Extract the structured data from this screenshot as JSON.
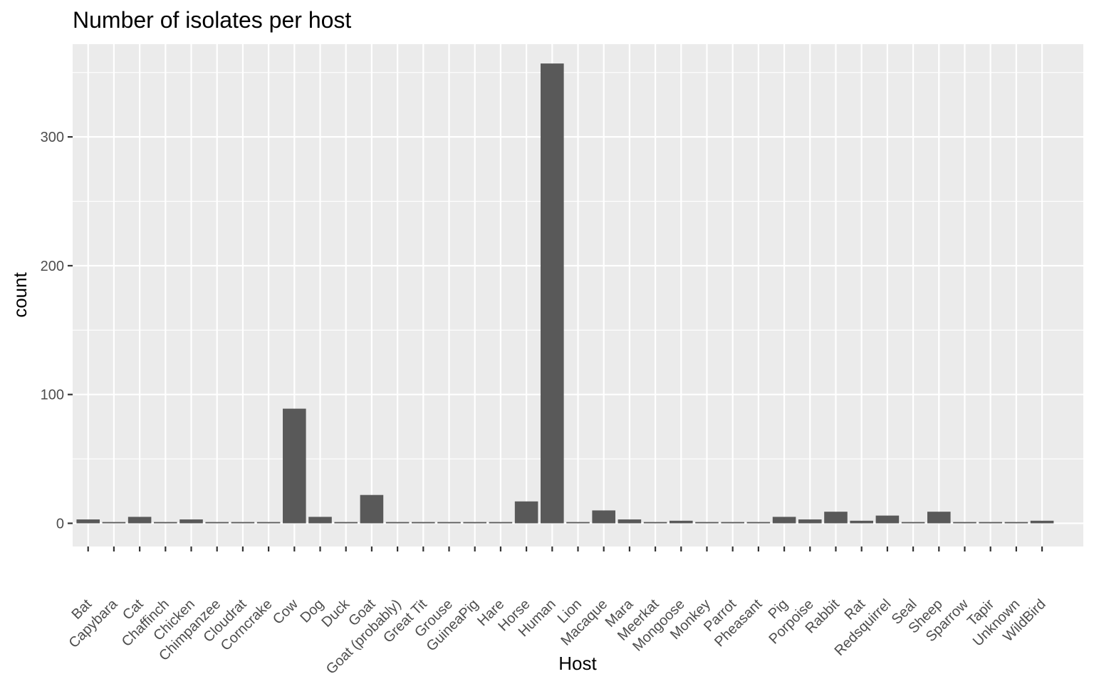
{
  "chart_data": {
    "type": "bar",
    "title": "Number of isolates per host",
    "xlabel": "Host",
    "ylabel": "count",
    "ylim": [
      -18,
      372
    ],
    "yticks": [
      0,
      100,
      200,
      300
    ],
    "grid": true,
    "legend": "none",
    "bar_color": "#595959",
    "panel_color": "#ebebeb",
    "categories": [
      "Bat",
      "Capybara",
      "Cat",
      "Chaffinch",
      "Chicken",
      "Chimpanzee",
      "Cloudrat",
      "Corncrake",
      "Cow",
      "Dog",
      "Duck",
      "Goat",
      "Goat (probably)",
      "Great Tit",
      "Grouse",
      "GuineaPig",
      "Hare",
      "Horse",
      "Human",
      "Lion",
      "Macaque",
      "Mara",
      "Meerkat",
      "Mongoose",
      "Monkey",
      "Parrot",
      "Pheasant",
      "Pig",
      "Porpoise",
      "Rabbit",
      "Rat",
      "Redsquirrel",
      "Seal",
      "Sheep",
      "Sparrow",
      "Tapir",
      "Unknown",
      "WildBird"
    ],
    "values": [
      3,
      1,
      5,
      1,
      3,
      1,
      1,
      1,
      89,
      5,
      1,
      22,
      1,
      1,
      1,
      1,
      1,
      17,
      357,
      1,
      10,
      3,
      1,
      2,
      1,
      1,
      1,
      5,
      3,
      9,
      2,
      6,
      1,
      9,
      1,
      1,
      1,
      2
    ]
  }
}
